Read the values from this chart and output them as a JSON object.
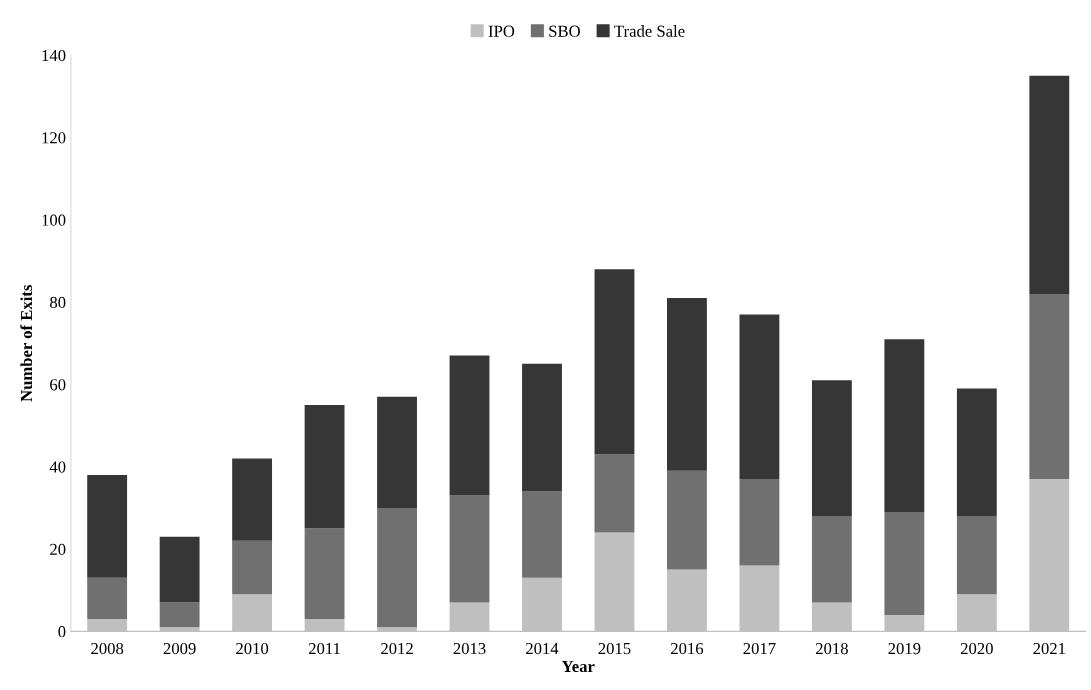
{
  "chart_data": {
    "type": "bar",
    "stacked": true,
    "xlabel": "Year",
    "ylabel": "Number of Exits",
    "categories": [
      "2008",
      "2009",
      "2010",
      "2011",
      "2012",
      "2013",
      "2014",
      "2015",
      "2016",
      "2017",
      "2018",
      "2019",
      "2020",
      "2021"
    ],
    "series": [
      {
        "name": "IPO",
        "color": "#bfbfbf",
        "values": [
          3,
          1,
          9,
          3,
          1,
          7,
          13,
          24,
          15,
          16,
          7,
          4,
          9,
          37
        ]
      },
      {
        "name": "SBO",
        "color": "#707070",
        "values": [
          10,
          6,
          13,
          22,
          29,
          26,
          21,
          19,
          24,
          21,
          21,
          25,
          19,
          45
        ]
      },
      {
        "name": "Trade Sale",
        "color": "#363636",
        "values": [
          25,
          16,
          20,
          30,
          27,
          34,
          31,
          45,
          42,
          40,
          33,
          42,
          31,
          53
        ]
      }
    ],
    "ylim": [
      0,
      140
    ],
    "yticks": [
      0,
      20,
      40,
      60,
      80,
      100,
      120,
      140
    ],
    "grid": false,
    "legend": "top"
  }
}
